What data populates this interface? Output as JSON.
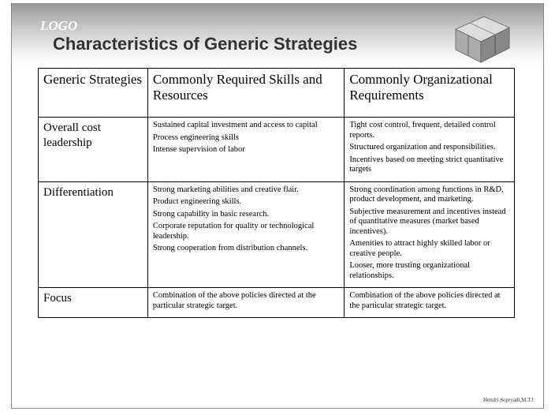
{
  "header": {
    "logo": "LOGO",
    "title": "Characteristics of Generic Strategies"
  },
  "table": {
    "columns": [
      "Generic Strategies",
      "Commonly Required Skills and Resources",
      "Commonly Organizational Requirements"
    ],
    "rows": [
      {
        "strategy": "Overall cost leadership",
        "skills": [
          "Sustained capital investment and access to capital",
          "Process engineering skills",
          "Intense supervision of labor"
        ],
        "requirements": [
          "Tight cost control, frequent, detailed control reports.",
          "Structured organization and responsibilities.",
          "Incentives based on meeting strict quantitative targets"
        ]
      },
      {
        "strategy": "Differentiation",
        "skills": [
          "Strong marketing abilities and creative flair.",
          "Product engineering skills.",
          "Strong capability in basic research.",
          "Corporate reputation for quality or technological leadership.",
          "Strong cooperation from distribution channels."
        ],
        "requirements": [
          "Strong coordination among functions in R&D, product development, and marketing.",
          "Subjective measurement and incentives instead of quantitative measures (market based incentives).",
          "Amenities to attract highly skilled labor or creative people.",
          "Looser, more trusting organizational relationships."
        ]
      },
      {
        "strategy": "Focus",
        "skills": [
          "Combination of the above policies directed at the particular strategic target."
        ],
        "requirements": [
          "Combination of the above policies directed at the particular strategic target."
        ]
      }
    ]
  },
  "footer": "Hendri Sopryadi,M.T.I"
}
